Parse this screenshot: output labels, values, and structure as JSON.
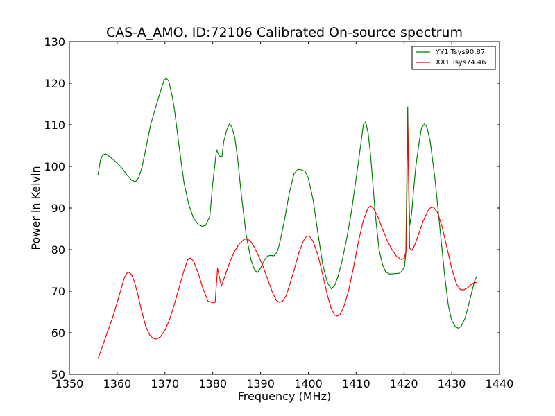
{
  "chart_data": {
    "type": "line",
    "title": "CAS-A_AMO, ID:72106 Calibrated On-source spectrum",
    "xlabel": "Frequency (MHz)",
    "ylabel": "Power in Kelvin",
    "xlim": [
      1350,
      1440
    ],
    "ylim": [
      50,
      130
    ],
    "xticks": [
      1350,
      1360,
      1370,
      1380,
      1390,
      1400,
      1410,
      1420,
      1430,
      1440
    ],
    "yticks": [
      50,
      60,
      70,
      80,
      90,
      100,
      110,
      120,
      130
    ],
    "grid": false,
    "legend_position": "top-right",
    "series": [
      {
        "name": "YY1 Tsys90.87",
        "color": "#008000",
        "points": [
          [
            1356.0,
            98.0
          ],
          [
            1356.5,
            101.5
          ],
          [
            1357.0,
            102.8
          ],
          [
            1357.6,
            103.0
          ],
          [
            1358.5,
            102.3
          ],
          [
            1360.0,
            100.8
          ],
          [
            1361.0,
            99.6
          ],
          [
            1362.0,
            98.0
          ],
          [
            1363.0,
            96.7
          ],
          [
            1363.8,
            96.3
          ],
          [
            1364.5,
            97.3
          ],
          [
            1365.2,
            99.8
          ],
          [
            1366.0,
            104.2
          ],
          [
            1367.0,
            110.0
          ],
          [
            1368.0,
            114.0
          ],
          [
            1369.0,
            117.8
          ],
          [
            1369.8,
            120.7
          ],
          [
            1370.3,
            121.2
          ],
          [
            1370.8,
            120.5
          ],
          [
            1371.5,
            117.0
          ],
          [
            1372.0,
            113.5
          ],
          [
            1373.0,
            104.5
          ],
          [
            1374.0,
            96.0
          ],
          [
            1375.0,
            90.8
          ],
          [
            1376.0,
            87.5
          ],
          [
            1377.0,
            86.0
          ],
          [
            1377.8,
            85.6
          ],
          [
            1378.5,
            85.8
          ],
          [
            1379.4,
            88.0
          ],
          [
            1380.0,
            96.0
          ],
          [
            1380.8,
            104.0
          ],
          [
            1381.4,
            102.5
          ],
          [
            1381.9,
            102.2
          ],
          [
            1382.3,
            106.0
          ],
          [
            1383.0,
            109.0
          ],
          [
            1383.5,
            110.2
          ],
          [
            1384.0,
            109.5
          ],
          [
            1384.6,
            107.0
          ],
          [
            1385.2,
            102.0
          ],
          [
            1386.0,
            93.0
          ],
          [
            1387.0,
            83.5
          ],
          [
            1388.0,
            77.5
          ],
          [
            1388.8,
            75.0
          ],
          [
            1389.4,
            74.5
          ],
          [
            1390.0,
            75.5
          ],
          [
            1390.8,
            77.5
          ],
          [
            1391.5,
            78.5
          ],
          [
            1392.2,
            78.6
          ],
          [
            1392.8,
            78.5
          ],
          [
            1393.5,
            79.5
          ],
          [
            1394.0,
            81.5
          ],
          [
            1395.0,
            87.0
          ],
          [
            1396.0,
            93.5
          ],
          [
            1397.0,
            98.2
          ],
          [
            1397.8,
            99.3
          ],
          [
            1398.5,
            99.2
          ],
          [
            1399.3,
            98.8
          ],
          [
            1400.0,
            97.2
          ],
          [
            1401.0,
            92.0
          ],
          [
            1402.0,
            84.0
          ],
          [
            1403.0,
            76.5
          ],
          [
            1404.0,
            72.0
          ],
          [
            1404.8,
            70.6
          ],
          [
            1405.5,
            71.3
          ],
          [
            1406.2,
            73.5
          ],
          [
            1407.0,
            77.0
          ],
          [
            1408.0,
            82.5
          ],
          [
            1409.0,
            89.0
          ],
          [
            1410.0,
            97.0
          ],
          [
            1411.0,
            105.5
          ],
          [
            1411.5,
            110.0
          ],
          [
            1412.0,
            110.7
          ],
          [
            1412.5,
            108.0
          ],
          [
            1413.0,
            103.0
          ],
          [
            1413.5,
            96.0
          ],
          [
            1414.0,
            88.5
          ],
          [
            1414.8,
            80.0
          ],
          [
            1415.5,
            76.5
          ],
          [
            1416.2,
            74.6
          ],
          [
            1417.0,
            74.1
          ],
          [
            1418.0,
            74.2
          ],
          [
            1419.0,
            74.3
          ],
          [
            1419.5,
            74.7
          ],
          [
            1420.1,
            75.8
          ],
          [
            1420.4,
            79.0
          ],
          [
            1420.8,
            114.3
          ],
          [
            1421.0,
            97.0
          ],
          [
            1421.2,
            85.8
          ],
          [
            1421.6,
            88.5
          ],
          [
            1422.0,
            94.0
          ],
          [
            1422.5,
            100.0
          ],
          [
            1423.2,
            106.0
          ],
          [
            1423.7,
            109.3
          ],
          [
            1424.3,
            110.2
          ],
          [
            1424.8,
            109.5
          ],
          [
            1425.5,
            106.0
          ],
          [
            1426.5,
            97.0
          ],
          [
            1427.5,
            85.5
          ],
          [
            1428.5,
            74.0
          ],
          [
            1429.3,
            66.5
          ],
          [
            1430.0,
            63.0
          ],
          [
            1430.8,
            61.4
          ],
          [
            1431.4,
            61.1
          ],
          [
            1432.0,
            61.6
          ],
          [
            1432.8,
            63.5
          ],
          [
            1433.5,
            66.5
          ],
          [
            1434.2,
            69.8
          ],
          [
            1434.8,
            72.5
          ],
          [
            1435.2,
            73.5
          ]
        ]
      },
      {
        "name": "XX1 Tsys74.46",
        "color": "#ff0000",
        "points": [
          [
            1356.0,
            53.8
          ],
          [
            1357.0,
            57.0
          ],
          [
            1358.0,
            60.3
          ],
          [
            1359.0,
            63.5
          ],
          [
            1360.0,
            67.3
          ],
          [
            1360.8,
            70.5
          ],
          [
            1361.5,
            73.2
          ],
          [
            1362.0,
            74.3
          ],
          [
            1362.4,
            74.6
          ],
          [
            1363.0,
            74.0
          ],
          [
            1363.6,
            72.3
          ],
          [
            1364.2,
            69.8
          ],
          [
            1365.0,
            65.8
          ],
          [
            1366.0,
            61.5
          ],
          [
            1366.8,
            59.5
          ],
          [
            1367.5,
            58.7
          ],
          [
            1368.2,
            58.5
          ],
          [
            1369.0,
            59.0
          ],
          [
            1370.0,
            60.6
          ],
          [
            1371.0,
            63.3
          ],
          [
            1372.0,
            67.0
          ],
          [
            1373.0,
            71.0
          ],
          [
            1374.0,
            75.0
          ],
          [
            1374.8,
            77.6
          ],
          [
            1375.3,
            78.0
          ],
          [
            1376.0,
            77.2
          ],
          [
            1377.0,
            74.2
          ],
          [
            1378.0,
            70.5
          ],
          [
            1379.0,
            67.6
          ],
          [
            1380.0,
            67.2
          ],
          [
            1380.5,
            67.3
          ],
          [
            1381.0,
            75.5
          ],
          [
            1381.3,
            73.8
          ],
          [
            1381.8,
            71.2
          ],
          [
            1382.5,
            73.5
          ],
          [
            1383.5,
            76.8
          ],
          [
            1384.5,
            79.5
          ],
          [
            1385.5,
            81.3
          ],
          [
            1386.5,
            82.4
          ],
          [
            1387.0,
            82.6
          ],
          [
            1387.8,
            82.2
          ],
          [
            1388.5,
            81.0
          ],
          [
            1389.5,
            78.7
          ],
          [
            1390.5,
            76.0
          ],
          [
            1391.5,
            72.8
          ],
          [
            1392.5,
            69.7
          ],
          [
            1393.3,
            67.8
          ],
          [
            1394.0,
            67.3
          ],
          [
            1394.6,
            67.6
          ],
          [
            1395.3,
            68.8
          ],
          [
            1396.0,
            71.2
          ],
          [
            1397.0,
            75.0
          ],
          [
            1398.0,
            79.2
          ],
          [
            1399.0,
            82.2
          ],
          [
            1399.6,
            83.2
          ],
          [
            1400.2,
            83.3
          ],
          [
            1401.0,
            82.0
          ],
          [
            1402.0,
            78.7
          ],
          [
            1403.0,
            74.0
          ],
          [
            1404.0,
            69.0
          ],
          [
            1404.8,
            65.8
          ],
          [
            1405.5,
            64.3
          ],
          [
            1406.0,
            64.0
          ],
          [
            1406.6,
            64.3
          ],
          [
            1407.5,
            66.5
          ],
          [
            1408.5,
            70.5
          ],
          [
            1409.5,
            76.0
          ],
          [
            1410.5,
            82.0
          ],
          [
            1411.5,
            87.0
          ],
          [
            1412.5,
            90.0
          ],
          [
            1413.0,
            90.5
          ],
          [
            1413.6,
            90.0
          ],
          [
            1414.5,
            88.0
          ],
          [
            1415.5,
            85.0
          ],
          [
            1416.5,
            82.2
          ],
          [
            1417.5,
            80.0
          ],
          [
            1418.5,
            78.3
          ],
          [
            1419.5,
            77.6
          ],
          [
            1420.1,
            78.0
          ],
          [
            1420.5,
            80.0
          ],
          [
            1420.8,
            110.8
          ],
          [
            1421.0,
            95.0
          ],
          [
            1421.2,
            80.3
          ],
          [
            1421.7,
            79.8
          ],
          [
            1422.3,
            81.2
          ],
          [
            1423.0,
            83.5
          ],
          [
            1424.0,
            86.8
          ],
          [
            1425.0,
            89.3
          ],
          [
            1425.6,
            90.1
          ],
          [
            1426.2,
            90.2
          ],
          [
            1427.0,
            89.0
          ],
          [
            1428.0,
            85.5
          ],
          [
            1429.0,
            80.5
          ],
          [
            1430.0,
            75.5
          ],
          [
            1431.0,
            71.7
          ],
          [
            1431.8,
            70.4
          ],
          [
            1432.5,
            70.3
          ],
          [
            1433.3,
            70.8
          ],
          [
            1434.0,
            71.5
          ],
          [
            1434.6,
            72.0
          ],
          [
            1435.2,
            72.1
          ]
        ]
      }
    ]
  }
}
